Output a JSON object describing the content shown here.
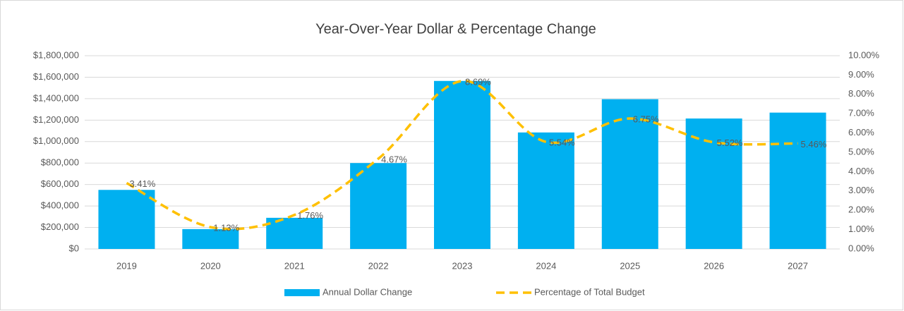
{
  "chart_data": {
    "type": "bar-line",
    "title": "Year-Over-Year Dollar & Percentage Change",
    "categories": [
      "2019",
      "2020",
      "2021",
      "2022",
      "2023",
      "2024",
      "2025",
      "2026",
      "2027"
    ],
    "series": [
      {
        "name": "Annual Dollar Change",
        "type": "bar",
        "color": "#00b0f0",
        "values": [
          550000,
          185000,
          290000,
          800000,
          1565000,
          1085000,
          1395000,
          1215000,
          1270000
        ]
      },
      {
        "name": "Percentage of Total Budget",
        "type": "line",
        "axis": "y2",
        "color": "#ffc000",
        "dashed": true,
        "smooth": true,
        "values": [
          3.41,
          1.13,
          1.76,
          4.67,
          8.69,
          5.54,
          6.75,
          5.52,
          5.46
        ],
        "value_labels": [
          "3.41%",
          "1.13%",
          "1.76%",
          "4.67%",
          "8.69%",
          "5.54%",
          "6.75%",
          "5.52%",
          "5.46%"
        ]
      }
    ],
    "ylim": [
      0,
      1800000
    ],
    "yticks": [
      {
        "value": 0,
        "label": "$0"
      },
      {
        "value": 200000,
        "label": "$200,000"
      },
      {
        "value": 400000,
        "label": "$400,000"
      },
      {
        "value": 600000,
        "label": "$600,000"
      },
      {
        "value": 800000,
        "label": "$800,000"
      },
      {
        "value": 1000000,
        "label": "$1,000,000"
      },
      {
        "value": 1200000,
        "label": "$1,200,000"
      },
      {
        "value": 1400000,
        "label": "$1,400,000"
      },
      {
        "value": 1600000,
        "label": "$1,600,000"
      },
      {
        "value": 1800000,
        "label": "$1,800,000"
      }
    ],
    "y2lim": [
      0,
      10
    ],
    "y2ticks": [
      {
        "value": 0,
        "label": "0.00%"
      },
      {
        "value": 1,
        "label": "1.00%"
      },
      {
        "value": 2,
        "label": "2.00%"
      },
      {
        "value": 3,
        "label": "3.00%"
      },
      {
        "value": 4,
        "label": "4.00%"
      },
      {
        "value": 5,
        "label": "5.00%"
      },
      {
        "value": 6,
        "label": "6.00%"
      },
      {
        "value": 7,
        "label": "7.00%"
      },
      {
        "value": 8,
        "label": "8.00%"
      },
      {
        "value": 9,
        "label": "9.00%"
      },
      {
        "value": 10,
        "label": "10.00%"
      }
    ],
    "grid": true,
    "legend": "bottom"
  }
}
